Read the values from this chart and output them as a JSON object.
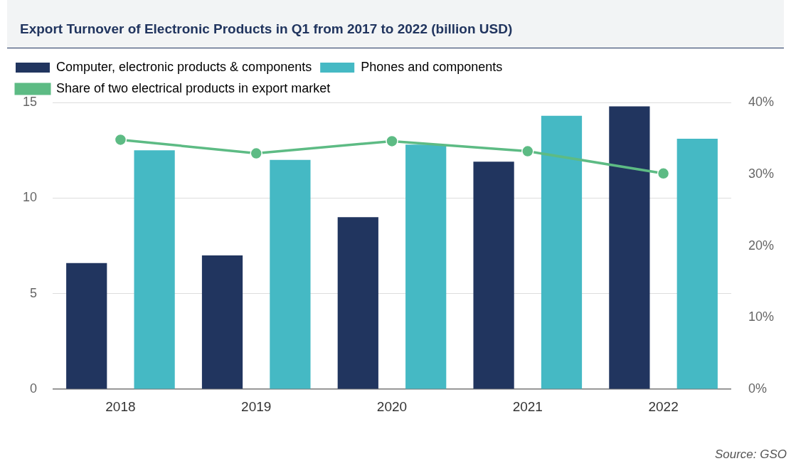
{
  "chart_data": {
    "type": "bar",
    "title": "Export Turnover of Electronic Products in Q1 from 2017 to 2022 (billion USD)",
    "categories": [
      "2018",
      "2019",
      "2020",
      "2021",
      "2022"
    ],
    "series": [
      {
        "name": "Computer, electronic products & components",
        "color": "#21355f",
        "values": [
          6.6,
          7.0,
          9.0,
          11.9,
          14.8
        ]
      },
      {
        "name": "Phones and components",
        "color": "#45b9c4",
        "values": [
          12.5,
          12.0,
          12.8,
          14.3,
          13.1
        ]
      },
      {
        "name": "Share of two electrical products in export market",
        "type": "line",
        "axis": "y2",
        "color": "#5dbb84",
        "values": [
          34.8,
          32.9,
          34.6,
          33.2,
          30.1
        ]
      }
    ],
    "ylim": [
      0,
      15
    ],
    "yticks": [
      0,
      5,
      10,
      15
    ],
    "y2lim": [
      0,
      40
    ],
    "y2ticks": [
      {
        "value": 0,
        "label": "0%"
      },
      {
        "value": 10,
        "label": "10%"
      },
      {
        "value": 20,
        "label": "20%"
      },
      {
        "value": 30,
        "label": "30%"
      },
      {
        "value": 40,
        "label": "40%"
      }
    ],
    "grid": "y",
    "legend": "top left",
    "marker": "circle",
    "annotations": [
      "Source: GSO"
    ]
  }
}
